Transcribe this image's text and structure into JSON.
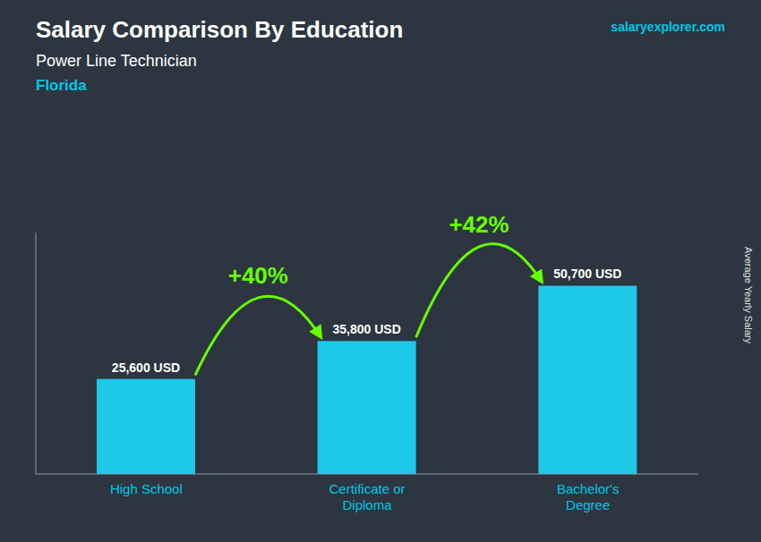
{
  "chart_data": {
    "type": "bar",
    "title": "Salary Comparison By Education",
    "subtitle": "Power Line Technician",
    "location": "Florida",
    "source": "salaryexplorer.com",
    "ylabel": "Average Yearly Salary",
    "categories": [
      "High School",
      "Certificate or\nDiploma",
      "Bachelor's\nDegree"
    ],
    "values": [
      25600,
      35800,
      50700
    ],
    "value_labels": [
      "25,600 USD",
      "35,800 USD",
      "50,700 USD"
    ],
    "data_labels": true,
    "annotations": [
      "+40%",
      "+42%"
    ],
    "color": "#1ec8e8",
    "ylim": [
      0,
      65000
    ],
    "grid": false,
    "tick_labels": "x"
  }
}
